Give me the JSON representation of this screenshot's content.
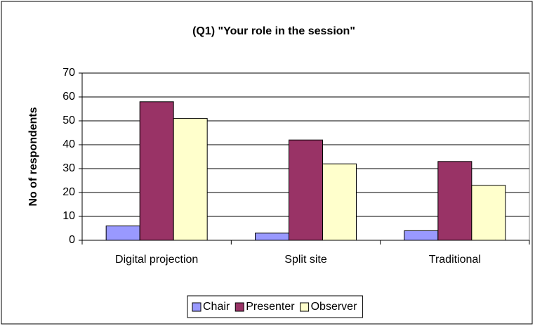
{
  "chart_data": {
    "type": "bar",
    "title": "(Q1) \"Your role in the session\"",
    "y_label": "No of respondents",
    "categories": [
      "Digital projection",
      "Split site",
      "Traditional"
    ],
    "series": [
      {
        "name": "Chair",
        "color": "#9999ff",
        "values": [
          6,
          3,
          4
        ]
      },
      {
        "name": "Presenter",
        "color": "#993366",
        "values": [
          58,
          42,
          33
        ]
      },
      {
        "name": "Observer",
        "color": "#ffffcc",
        "values": [
          51,
          32,
          23
        ]
      }
    ],
    "ylim": [
      0,
      70
    ],
    "yticks": [
      0,
      10,
      20,
      30,
      40,
      50,
      60,
      70
    ],
    "grid": true,
    "legend": "bottom"
  }
}
